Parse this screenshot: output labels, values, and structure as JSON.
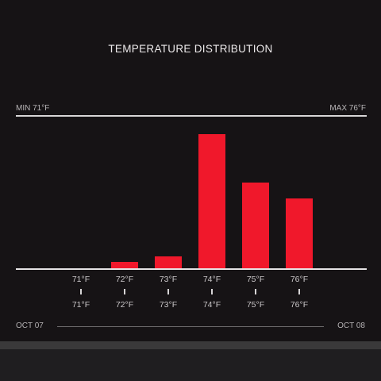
{
  "chart_data": {
    "type": "bar",
    "title": "TEMPERATURE DISTRIBUTION",
    "min_label": "MIN 71°F",
    "max_label": "MAX 76°F",
    "categories": [
      "71°F",
      "72°F",
      "73°F",
      "74°F",
      "75°F",
      "76°F"
    ],
    "secondary_labels": [
      "71°F",
      "72°F",
      "73°F",
      "74°F",
      "75°F",
      "76°F"
    ],
    "values": [
      0,
      4,
      8,
      88,
      56,
      46
    ],
    "ylim": [
      0,
      100
    ],
    "bar_color": "#f0182b",
    "start_date": "OCT 07",
    "end_date": "OCT 08"
  }
}
